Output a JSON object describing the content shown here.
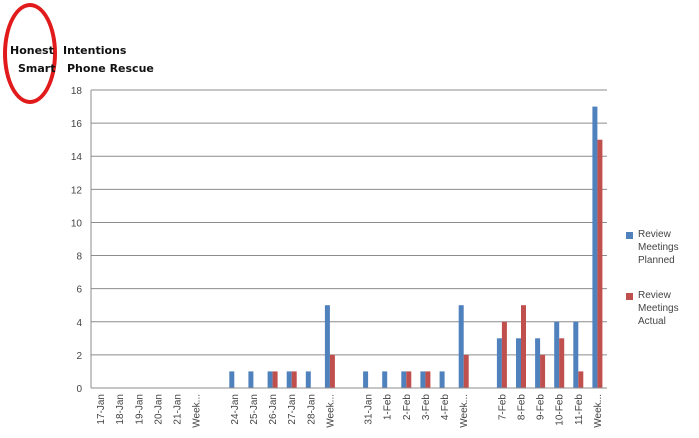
{
  "logo": {
    "line1_left": "Honest",
    "line1_right": "Intentions",
    "line2_left": "Smart",
    "line2_right": "Phone Rescue",
    "ring_color": "#e11b1b"
  },
  "chart_data": {
    "type": "bar",
    "title": "",
    "xlabel": "",
    "ylabel": "",
    "ylim": [
      0,
      18
    ],
    "yticks": [
      0,
      2,
      4,
      6,
      8,
      10,
      12,
      14,
      16,
      18
    ],
    "grid": true,
    "legend_position": "right",
    "categories": [
      "17-Jan",
      "18-Jan",
      "19-Jan",
      "20-Jan",
      "21-Jan",
      "Week...",
      "",
      "24-Jan",
      "25-Jan",
      "26-Jan",
      "27-Jan",
      "28-Jan",
      "Week...",
      "",
      "31-Jan",
      "1-Feb",
      "2-Feb",
      "3-Feb",
      "4-Feb",
      "Week...",
      "",
      "7-Feb",
      "8-Feb",
      "9-Feb",
      "10-Feb",
      "11-Feb",
      "Week..."
    ],
    "series": [
      {
        "name": "Review Meetings Planned",
        "color": "#4f81bd",
        "values": [
          0,
          0,
          0,
          0,
          0,
          0,
          null,
          1,
          1,
          1,
          1,
          1,
          5,
          null,
          1,
          1,
          1,
          1,
          1,
          5,
          null,
          3,
          3,
          3,
          4,
          4,
          17
        ]
      },
      {
        "name": "Review Meetings Actual",
        "color": "#c0504d",
        "values": [
          0,
          0,
          0,
          0,
          0,
          0,
          null,
          0,
          0,
          1,
          1,
          0,
          2,
          null,
          0,
          0,
          1,
          1,
          0,
          2,
          null,
          4,
          5,
          2,
          3,
          1,
          15
        ]
      }
    ]
  }
}
